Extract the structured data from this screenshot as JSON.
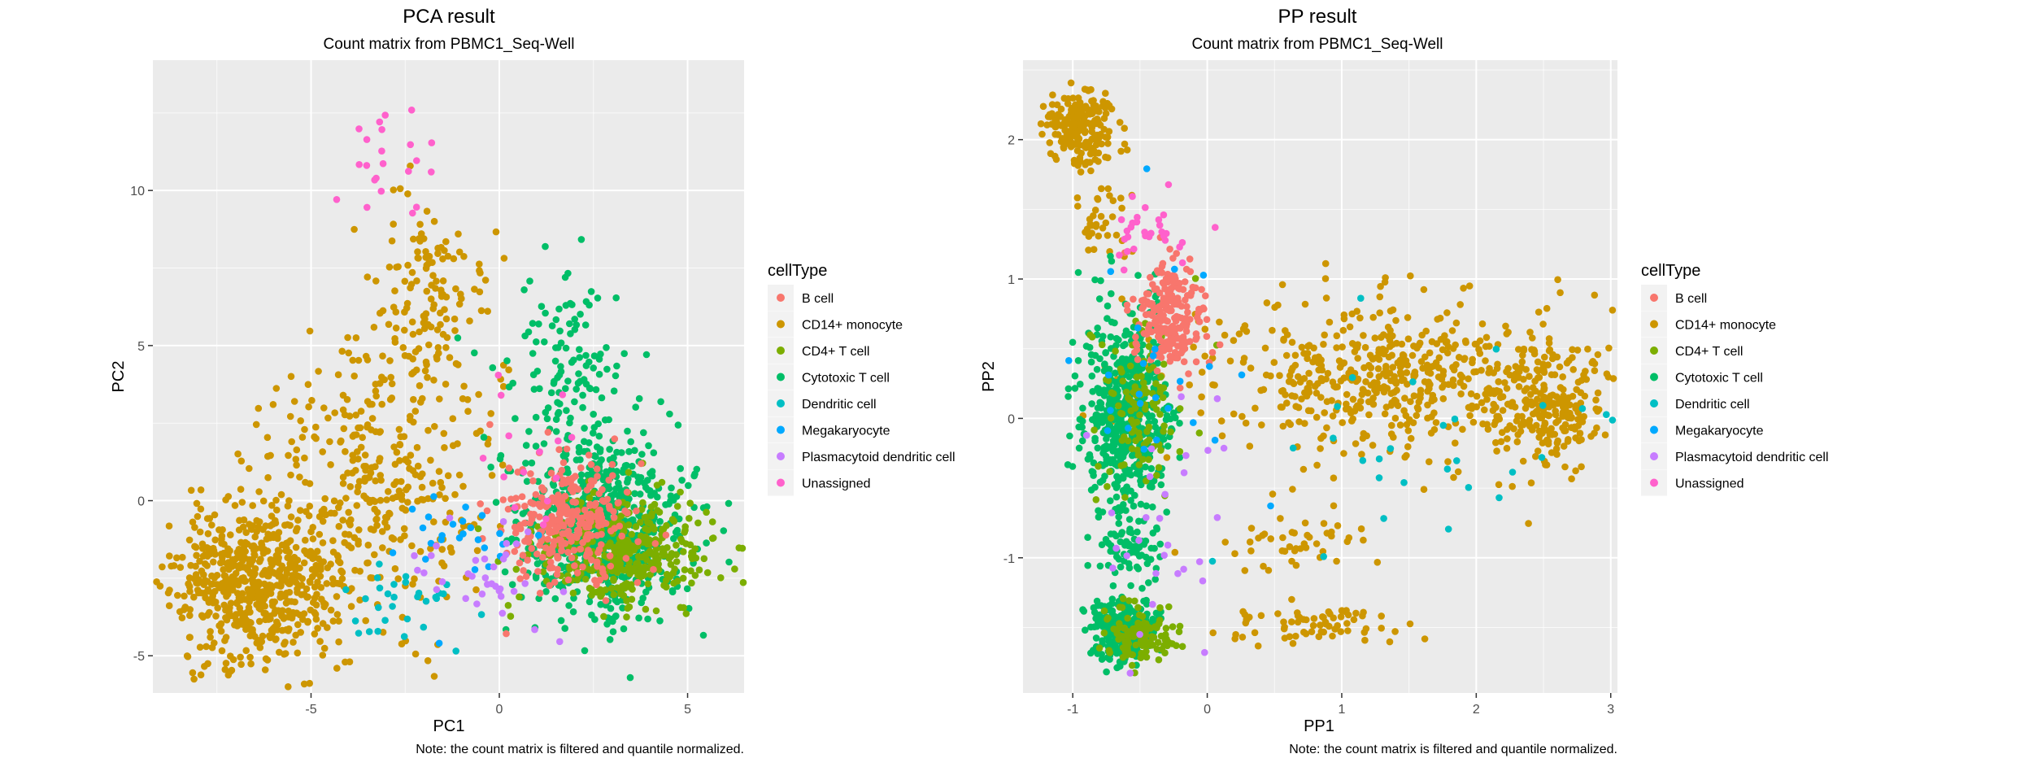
{
  "colors": {
    "panel": "#ebebeb",
    "grid_major": "#ffffff",
    "axis_text": "#4d4d4d",
    "title": "#000000"
  },
  "legend": {
    "title": "cellType",
    "items": [
      {
        "label": "B cell",
        "color": "#F8766D"
      },
      {
        "label": "CD14+ monocyte",
        "color": "#CD9600"
      },
      {
        "label": "CD4+ T cell",
        "color": "#7CAE00"
      },
      {
        "label": "Cytotoxic T cell",
        "color": "#00BE67"
      },
      {
        "label": "Dendritic cell",
        "color": "#00BFC4"
      },
      {
        "label": "Megakaryocyte",
        "color": "#00A9FF"
      },
      {
        "label": "Plasmacytoid dendritic cell",
        "color": "#C77CFF"
      },
      {
        "label": "Unassigned",
        "color": "#FF61CC"
      }
    ]
  },
  "chart_data": [
    {
      "type": "scatter",
      "title": "PCA result",
      "subtitle": "Count matrix from PBMC1_Seq-Well",
      "xlabel": "PC1",
      "ylabel": "PC2",
      "xlim": [
        -9.2,
        6.5
      ],
      "ylim": [
        -6.2,
        14.2
      ],
      "xticks": [
        -5,
        0,
        5
      ],
      "yticks": [
        -5,
        0,
        5,
        10
      ],
      "xtick_labels": [
        "-5",
        "0",
        "5"
      ],
      "ytick_labels": [
        "-5",
        "0",
        "5",
        "10"
      ],
      "caption": "Note: the count matrix is filtered and quantile normalized.",
      "grid": true,
      "clusters": [
        {
          "series": "CD14+ monocyte",
          "n": 620,
          "cx": -6.5,
          "cy": -2.6,
          "sx": 1.1,
          "sy": 1.3,
          "seed": 11
        },
        {
          "series": "CD14+ monocyte",
          "n": 320,
          "cx": -3.2,
          "cy": 0.6,
          "sx": 1.4,
          "sy": 2.1,
          "seed": 12
        },
        {
          "series": "CD14+ monocyte",
          "n": 140,
          "cx": -2.2,
          "cy": 6.5,
          "sx": 0.9,
          "sy": 1.6,
          "seed": 13
        },
        {
          "series": "Cytotoxic T cell",
          "n": 700,
          "cx": 2.7,
          "cy": -0.9,
          "sx": 1.1,
          "sy": 1.4,
          "seed": 21
        },
        {
          "series": "Cytotoxic T cell",
          "n": 130,
          "cx": 1.7,
          "cy": 4.2,
          "sx": 0.9,
          "sy": 1.5,
          "seed": 22
        },
        {
          "series": "CD4+ T cell",
          "n": 360,
          "cx": 3.4,
          "cy": -1.6,
          "sx": 1.2,
          "sy": 0.9,
          "seed": 31
        },
        {
          "series": "B cell",
          "n": 280,
          "cx": 1.8,
          "cy": -0.6,
          "sx": 0.8,
          "sy": 1.1,
          "seed": 41
        },
        {
          "series": "Dendritic cell",
          "n": 30,
          "cx": -2.8,
          "cy": -3.5,
          "sx": 0.8,
          "sy": 0.7,
          "seed": 51
        },
        {
          "series": "Megakaryocyte",
          "n": 25,
          "cx": -1.2,
          "cy": -1.2,
          "sx": 1.2,
          "sy": 1.0,
          "seed": 61
        },
        {
          "series": "Plasmacytoid dendritic cell",
          "n": 35,
          "cx": -0.6,
          "cy": -2.2,
          "sx": 1.0,
          "sy": 1.1,
          "seed": 71
        },
        {
          "series": "Unassigned",
          "n": 22,
          "cx": -3.0,
          "cy": 11.3,
          "sx": 0.6,
          "sy": 1.0,
          "seed": 81
        },
        {
          "series": "Unassigned",
          "n": 15,
          "cx": 0.9,
          "cy": 1.3,
          "sx": 1.0,
          "sy": 1.8,
          "seed": 82
        }
      ]
    },
    {
      "type": "scatter",
      "title": "PP result",
      "subtitle": "Count matrix from PBMC1_Seq-Well",
      "xlabel": "PP1",
      "ylabel": "PP2",
      "xlim": [
        -1.37,
        3.05
      ],
      "ylim": [
        -1.97,
        2.57
      ],
      "xticks": [
        -1,
        0,
        1,
        2,
        3
      ],
      "yticks": [
        -1,
        0,
        1,
        2
      ],
      "xtick_labels": [
        "-1",
        "0",
        "1",
        "2",
        "3"
      ],
      "ytick_labels": [
        "-1",
        "0",
        "1",
        "2"
      ],
      "caption": "Note: the count matrix is filtered and quantile normalized.",
      "grid": true,
      "clusters": [
        {
          "series": "CD14+ monocyte",
          "n": 200,
          "cx": -0.95,
          "cy": 2.12,
          "sx": 0.13,
          "sy": 0.13,
          "seed": 111
        },
        {
          "series": "CD14+ monocyte",
          "n": 560,
          "cx": 1.4,
          "cy": 0.3,
          "sx": 0.75,
          "sy": 0.28,
          "seed": 112
        },
        {
          "series": "CD14+ monocyte",
          "n": 190,
          "cx": 2.55,
          "cy": 0.05,
          "sx": 0.17,
          "sy": 0.2,
          "seed": 113
        },
        {
          "series": "CD14+ monocyte",
          "n": 70,
          "cx": 0.7,
          "cy": -1.47,
          "sx": 0.32,
          "sy": 0.07,
          "seed": 114
        },
        {
          "series": "CD14+ monocyte",
          "n": 45,
          "cx": 0.6,
          "cy": -0.87,
          "sx": 0.35,
          "sy": 0.09,
          "seed": 115
        },
        {
          "series": "CD14+ monocyte",
          "n": 40,
          "cx": -0.78,
          "cy": 1.45,
          "sx": 0.12,
          "sy": 0.22,
          "seed": 116
        },
        {
          "series": "Cytotoxic T cell",
          "n": 550,
          "cx": -0.6,
          "cy": 0.05,
          "sx": 0.16,
          "sy": 0.38,
          "seed": 121
        },
        {
          "series": "Cytotoxic T cell",
          "n": 260,
          "cx": -0.62,
          "cy": -1.52,
          "sx": 0.12,
          "sy": 0.11,
          "seed": 122
        },
        {
          "series": "Cytotoxic T cell",
          "n": 60,
          "cx": -0.57,
          "cy": -0.93,
          "sx": 0.12,
          "sy": 0.1,
          "seed": 123
        },
        {
          "series": "CD4+ T cell",
          "n": 120,
          "cx": -0.52,
          "cy": -1.55,
          "sx": 0.13,
          "sy": 0.1,
          "seed": 131
        },
        {
          "series": "CD4+ T cell",
          "n": 110,
          "cx": -0.5,
          "cy": 0.1,
          "sx": 0.15,
          "sy": 0.3,
          "seed": 132
        },
        {
          "series": "B cell",
          "n": 230,
          "cx": -0.28,
          "cy": 0.75,
          "sx": 0.13,
          "sy": 0.2,
          "seed": 141
        },
        {
          "series": "Dendritic cell",
          "n": 30,
          "cx": 1.4,
          "cy": 0.0,
          "sx": 0.8,
          "sy": 0.4,
          "seed": 151
        },
        {
          "series": "Megakaryocyte",
          "n": 25,
          "cx": -0.4,
          "cy": 0.2,
          "sx": 0.3,
          "sy": 0.5,
          "seed": 161
        },
        {
          "series": "Plasmacytoid dendritic cell",
          "n": 30,
          "cx": -0.3,
          "cy": -0.6,
          "sx": 0.3,
          "sy": 0.5,
          "seed": 171
        },
        {
          "series": "Unassigned",
          "n": 30,
          "cx": -0.42,
          "cy": 1.35,
          "sx": 0.15,
          "sy": 0.12,
          "seed": 181
        }
      ]
    }
  ]
}
